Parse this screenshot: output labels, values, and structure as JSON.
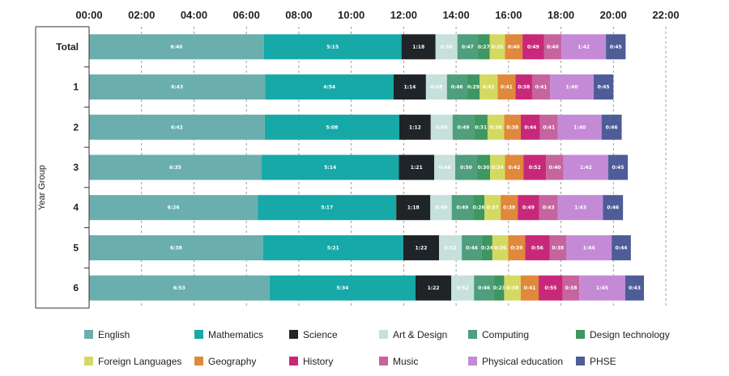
{
  "chart_data": {
    "type": "bar",
    "orientation": "horizontal",
    "stacked": true,
    "title": "",
    "ylabel": "Year Group",
    "xlabel": "",
    "x_ticks": [
      "00:00",
      "02:00",
      "04:00",
      "06:00",
      "08:00",
      "10:00",
      "12:00",
      "14:00",
      "16:00",
      "18:00",
      "20:00",
      "22:00"
    ],
    "xlim": [
      0,
      22
    ],
    "x_unit": "hours",
    "grid": "vertical dashed",
    "legend_position": "bottom",
    "categories": [
      "Total",
      "1",
      "2",
      "3",
      "4",
      "5",
      "6"
    ],
    "series": [
      {
        "name": "English",
        "color": "#6aaeae",
        "labels": [
          "6:40",
          "6:43",
          "6:42",
          "6:35",
          "6:26",
          "6:38",
          "6:53"
        ]
      },
      {
        "name": "Mathematics",
        "color": "#17a8a8",
        "labels": [
          "5:15",
          "4:54",
          "5:08",
          "5:14",
          "5:17",
          "5:21",
          "5:34"
        ]
      },
      {
        "name": "Science",
        "color": "#1e2428",
        "labels": [
          "1:18",
          "1:14",
          "1:12",
          "1:21",
          "1:18",
          "1:22",
          "1:22"
        ]
      },
      {
        "name": "Art & Design",
        "color": "#c6e0dc",
        "labels": [
          "0:50",
          "0:48",
          "0:50",
          "0:48",
          "0:49",
          "0:52",
          "0:52"
        ]
      },
      {
        "name": "Computing",
        "color": "#4f9e7d",
        "labels": [
          "0:47",
          "0:46",
          "0:49",
          "0:50",
          "0:49",
          "0:46",
          "0:46"
        ]
      },
      {
        "name": "Design  technology",
        "color": "#3e9660",
        "labels": [
          "0:27",
          "0:29",
          "0:31",
          "0:30",
          "0:26",
          "0:24",
          "0:23"
        ]
      },
      {
        "name": "Foreign Languages",
        "color": "#d4da60",
        "labels": [
          "0:35",
          "0:41",
          "0:38",
          "0:34",
          "0:37",
          "0:36",
          "0:38"
        ]
      },
      {
        "name": "Geography",
        "color": "#e0883c",
        "labels": [
          "0:40",
          "0:41",
          "0:38",
          "0:42",
          "0:39",
          "0:39",
          "0:41"
        ]
      },
      {
        "name": "History",
        "color": "#c8287a",
        "labels": [
          "0:49",
          "0:38",
          "0:44",
          "0:52",
          "0:49",
          "0:56",
          "0:55"
        ]
      },
      {
        "name": "Music",
        "color": "#c6649e",
        "labels": [
          "0:40",
          "0:41",
          "0:41",
          "0:40",
          "0:43",
          "0:38",
          "0:38"
        ]
      },
      {
        "name": "Physical education",
        "color": "#c48ad6",
        "labels": [
          "1:42",
          "1:40",
          "1:40",
          "1:42",
          "1:43",
          "1:44",
          "1:45"
        ]
      },
      {
        "name": "PHSE",
        "color": "#4e5c98",
        "labels": [
          "0:45",
          "0:45",
          "0:46",
          "0:45",
          "0:46",
          "0:44",
          "0:43"
        ]
      }
    ]
  }
}
